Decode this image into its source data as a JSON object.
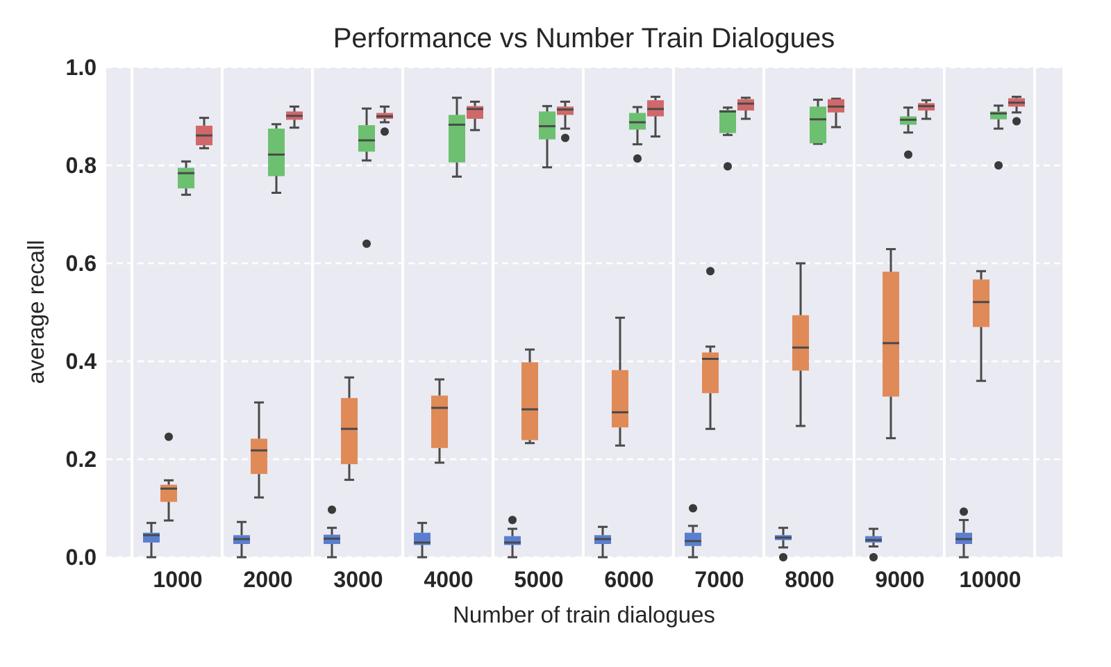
{
  "chart_data": {
    "type": "box",
    "title": "Performance vs Number Train Dialogues",
    "xlabel": "Number of train dialogues",
    "ylabel": "average recall",
    "ylim": [
      0,
      1.0
    ],
    "yticks": [
      "0.0",
      "0.2",
      "0.4",
      "0.6",
      "0.8",
      "1.0"
    ],
    "grid": true,
    "categories": [
      "1000",
      "2000",
      "3000",
      "4000",
      "5000",
      "6000",
      "7000",
      "8000",
      "9000",
      "10000"
    ],
    "series": [
      {
        "color": "#4c72b0",
        "fill": "#5a7fd0",
        "boxes": [
          {
            "whislo": 0.0,
            "q1": 0.03,
            "med": 0.045,
            "q3": 0.05,
            "whishi": 0.07,
            "fliers": []
          },
          {
            "whislo": 0.0,
            "q1": 0.027,
            "med": 0.037,
            "q3": 0.045,
            "whishi": 0.072,
            "fliers": []
          },
          {
            "whislo": 0.0,
            "q1": 0.027,
            "med": 0.038,
            "q3": 0.046,
            "whishi": 0.06,
            "fliers": [
              0.097
            ]
          },
          {
            "whislo": 0.0,
            "q1": 0.025,
            "med": 0.03,
            "q3": 0.05,
            "whishi": 0.07,
            "fliers": []
          },
          {
            "whislo": 0.0,
            "q1": 0.025,
            "med": 0.03,
            "q3": 0.043,
            "whishi": 0.058,
            "fliers": [
              0.076
            ]
          },
          {
            "whislo": 0.0,
            "q1": 0.027,
            "med": 0.037,
            "q3": 0.045,
            "whishi": 0.062,
            "fliers": []
          },
          {
            "whislo": 0.0,
            "q1": 0.023,
            "med": 0.033,
            "q3": 0.05,
            "whishi": 0.064,
            "fliers": [
              0.1
            ]
          },
          {
            "whislo": 0.02,
            "q1": 0.035,
            "med": 0.04,
            "q3": 0.045,
            "whishi": 0.06,
            "fliers": [
              0.0
            ]
          },
          {
            "whislo": 0.022,
            "q1": 0.03,
            "med": 0.035,
            "q3": 0.043,
            "whishi": 0.058,
            "fliers": [
              0.0
            ]
          },
          {
            "whislo": 0.0,
            "q1": 0.027,
            "med": 0.037,
            "q3": 0.05,
            "whishi": 0.076,
            "fliers": [
              0.093
            ]
          }
        ]
      },
      {
        "color": "#dd8452",
        "fill": "#e08a58",
        "boxes": [
          {
            "whislo": 0.075,
            "q1": 0.113,
            "med": 0.14,
            "q3": 0.148,
            "whishi": 0.157,
            "fliers": [
              0.246
            ]
          },
          {
            "whislo": 0.122,
            "q1": 0.17,
            "med": 0.218,
            "q3": 0.242,
            "whishi": 0.316,
            "fliers": []
          },
          {
            "whislo": 0.158,
            "q1": 0.19,
            "med": 0.262,
            "q3": 0.325,
            "whishi": 0.367,
            "fliers": []
          },
          {
            "whislo": 0.193,
            "q1": 0.223,
            "med": 0.305,
            "q3": 0.33,
            "whishi": 0.363,
            "fliers": []
          },
          {
            "whislo": 0.233,
            "q1": 0.239,
            "med": 0.302,
            "q3": 0.398,
            "whishi": 0.424,
            "fliers": []
          },
          {
            "whislo": 0.228,
            "q1": 0.265,
            "med": 0.296,
            "q3": 0.382,
            "whishi": 0.489,
            "fliers": []
          },
          {
            "whislo": 0.262,
            "q1": 0.335,
            "med": 0.405,
            "q3": 0.418,
            "whishi": 0.43,
            "fliers": [
              0.584
            ]
          },
          {
            "whislo": 0.268,
            "q1": 0.381,
            "med": 0.428,
            "q3": 0.494,
            "whishi": 0.6,
            "fliers": []
          },
          {
            "whislo": 0.243,
            "q1": 0.328,
            "med": 0.437,
            "q3": 0.583,
            "whishi": 0.629,
            "fliers": []
          },
          {
            "whislo": 0.36,
            "q1": 0.47,
            "med": 0.521,
            "q3": 0.567,
            "whishi": 0.584,
            "fliers": []
          }
        ]
      },
      {
        "color": "#55a868",
        "fill": "#6cc070",
        "boxes": [
          {
            "whislo": 0.74,
            "q1": 0.753,
            "med": 0.784,
            "q3": 0.795,
            "whishi": 0.808,
            "fliers": []
          },
          {
            "whislo": 0.744,
            "q1": 0.778,
            "med": 0.822,
            "q3": 0.875,
            "whishi": 0.884,
            "fliers": []
          },
          {
            "whislo": 0.81,
            "q1": 0.828,
            "med": 0.851,
            "q3": 0.882,
            "whishi": 0.916,
            "fliers": [
              0.64
            ]
          },
          {
            "whislo": 0.777,
            "q1": 0.806,
            "med": 0.883,
            "q3": 0.903,
            "whishi": 0.938,
            "fliers": []
          },
          {
            "whislo": 0.796,
            "q1": 0.853,
            "med": 0.88,
            "q3": 0.91,
            "whishi": 0.921,
            "fliers": []
          },
          {
            "whislo": 0.843,
            "q1": 0.873,
            "med": 0.888,
            "q3": 0.907,
            "whishi": 0.919,
            "fliers": [
              0.814
            ]
          },
          {
            "whislo": 0.862,
            "q1": 0.866,
            "med": 0.91,
            "q3": 0.913,
            "whishi": 0.918,
            "fliers": [
              0.798
            ]
          },
          {
            "whislo": 0.844,
            "q1": 0.845,
            "med": 0.894,
            "q3": 0.92,
            "whishi": 0.934,
            "fliers": []
          },
          {
            "whislo": 0.867,
            "q1": 0.883,
            "med": 0.893,
            "q3": 0.9,
            "whishi": 0.918,
            "fliers": [
              0.822
            ]
          },
          {
            "whislo": 0.875,
            "q1": 0.894,
            "med": 0.906,
            "q3": 0.91,
            "whishi": 0.922,
            "fliers": [
              0.8
            ]
          }
        ]
      },
      {
        "color": "#c44e52",
        "fill": "#d0686a",
        "boxes": [
          {
            "whislo": 0.835,
            "q1": 0.841,
            "med": 0.861,
            "q3": 0.881,
            "whishi": 0.897,
            "fliers": []
          },
          {
            "whislo": 0.877,
            "q1": 0.893,
            "med": 0.901,
            "q3": 0.91,
            "whishi": 0.92,
            "fliers": []
          },
          {
            "whislo": 0.888,
            "q1": 0.895,
            "med": 0.9,
            "q3": 0.907,
            "whishi": 0.92,
            "fliers": [
              0.869
            ]
          },
          {
            "whislo": 0.872,
            "q1": 0.895,
            "med": 0.915,
            "q3": 0.921,
            "whishi": 0.93,
            "fliers": []
          },
          {
            "whislo": 0.875,
            "q1": 0.903,
            "med": 0.914,
            "q3": 0.92,
            "whishi": 0.93,
            "fliers": [
              0.856
            ]
          },
          {
            "whislo": 0.859,
            "q1": 0.9,
            "med": 0.915,
            "q3": 0.933,
            "whishi": 0.94,
            "fliers": []
          },
          {
            "whislo": 0.895,
            "q1": 0.912,
            "med": 0.926,
            "q3": 0.935,
            "whishi": 0.938,
            "fliers": []
          },
          {
            "whislo": 0.878,
            "q1": 0.908,
            "med": 0.92,
            "q3": 0.935,
            "whishi": 0.936,
            "fliers": []
          },
          {
            "whislo": 0.895,
            "q1": 0.912,
            "med": 0.921,
            "q3": 0.927,
            "whishi": 0.933,
            "fliers": []
          },
          {
            "whislo": 0.908,
            "q1": 0.92,
            "med": 0.928,
            "q3": 0.937,
            "whishi": 0.94,
            "fliers": [
              0.89
            ]
          }
        ]
      }
    ]
  }
}
